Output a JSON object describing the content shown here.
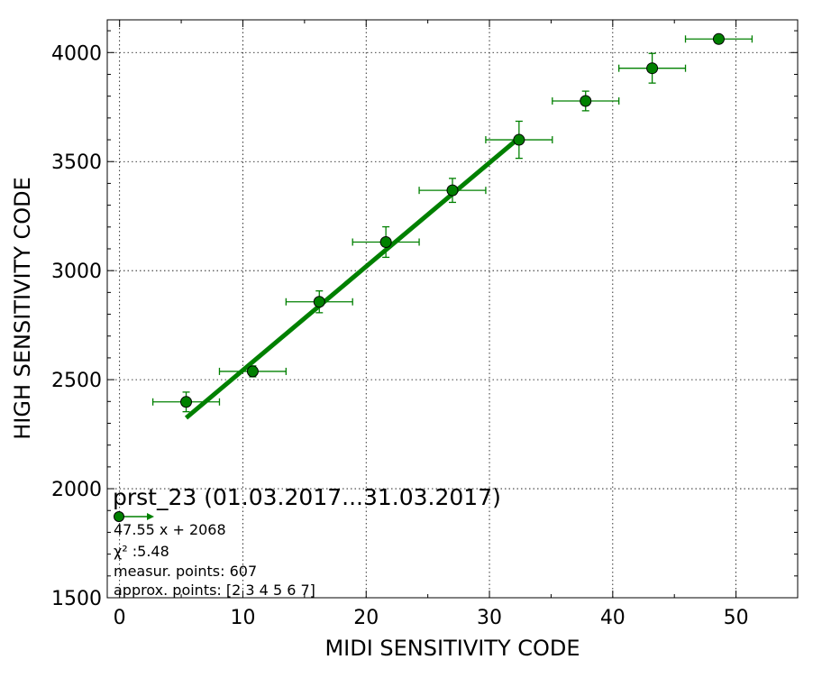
{
  "chart_data": {
    "type": "scatter",
    "title": "prst_23 (01.03.2017...31.03.2017)",
    "xlabel": "MIDI SENSITIVITY CODE",
    "ylabel": "HIGH SENSITIVITY CODE",
    "xlim": [
      -1,
      55
    ],
    "ylim": [
      1500,
      4150
    ],
    "xticks": [
      0,
      10,
      20,
      30,
      40,
      50
    ],
    "yticks": [
      1500,
      2000,
      2500,
      3000,
      3500,
      4000
    ],
    "xtick_labels": [
      "0",
      "10",
      "20",
      "30",
      "40",
      "50"
    ],
    "ytick_labels": [
      "1500",
      "2000",
      "2500",
      "3000",
      "3500",
      "4000"
    ],
    "grid": true,
    "color": "#008000",
    "series": [
      {
        "type": "errorbar",
        "points": [
          {
            "x": 5.4,
            "y": 2398,
            "xerr": 2.7,
            "yerr": 45
          },
          {
            "x": 10.8,
            "y": 2538,
            "xerr": 2.7,
            "yerr": 25
          },
          {
            "x": 16.2,
            "y": 2857,
            "xerr": 2.7,
            "yerr": 50
          },
          {
            "x": 21.6,
            "y": 3131,
            "xerr": 2.7,
            "yerr": 70
          },
          {
            "x": 27.0,
            "y": 3368,
            "xerr": 2.7,
            "yerr": 55
          },
          {
            "x": 32.4,
            "y": 3600,
            "xerr": 2.7,
            "yerr": 85
          },
          {
            "x": 37.8,
            "y": 3778,
            "xerr": 2.7,
            "yerr": 45
          },
          {
            "x": 43.2,
            "y": 3928,
            "xerr": 2.7,
            "yerr": 68
          },
          {
            "x": 48.6,
            "y": 4062,
            "xerr": 2.7,
            "yerr": 0
          }
        ]
      },
      {
        "type": "fit-line",
        "slope": 47.55,
        "intercept": 2068,
        "x_range": [
          5.4,
          32.4
        ]
      }
    ],
    "legend": {
      "placement": "lower-left",
      "lines": [
        "47.55 x + 2068",
        "χ² :5.48",
        "measur. points: 607",
        "approx. points: [2 3 4 5 6 7]"
      ]
    }
  }
}
